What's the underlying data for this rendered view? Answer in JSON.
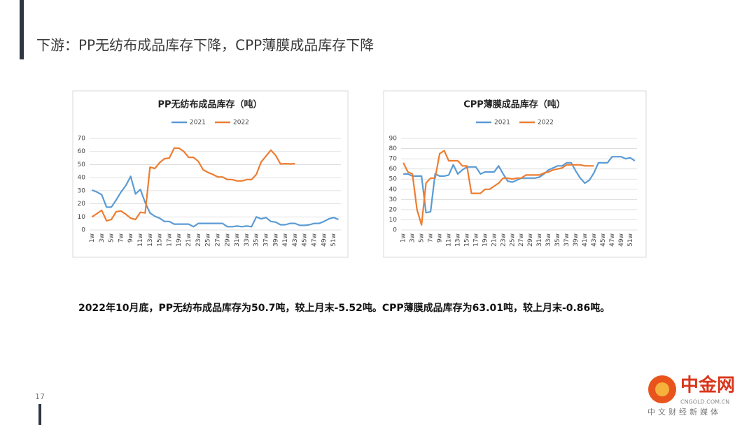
{
  "header": {
    "title": "下游：PP无纺布成品库存下降，CPP薄膜成品库存下降"
  },
  "chart_data": [
    {
      "type": "line",
      "title": "PP无纺布成品库存（吨）",
      "categories": [
        "1w",
        null,
        "3w",
        null,
        "5w",
        null,
        "7w",
        null,
        "9w",
        null,
        "11w",
        null,
        "13w",
        null,
        "15w",
        null,
        "17w",
        null,
        "19w",
        null,
        "21w",
        null,
        "23w",
        null,
        "25w",
        null,
        "27w",
        null,
        "29w",
        null,
        "31w",
        null,
        "33w",
        null,
        "35w",
        null,
        "37w",
        null,
        "39w",
        null,
        "41w",
        null,
        "43w",
        null,
        "45w",
        null,
        "47w",
        null,
        "49w",
        null,
        "51w",
        null
      ],
      "series": [
        {
          "name": "2021",
          "color": "#5b9bd5",
          "values": [
            30.5,
            29,
            27,
            17.5,
            17.5,
            23,
            29,
            34,
            41,
            27.5,
            31,
            21,
            13,
            10.5,
            9,
            6.5,
            6.5,
            4.5,
            4.5,
            4.5,
            4.5,
            2.5,
            5,
            5,
            5,
            5,
            5,
            5,
            2.5,
            2.5,
            3,
            2.5,
            3,
            2.5,
            10,
            8.5,
            9.5,
            6.5,
            6,
            4,
            4,
            5,
            5,
            3.5,
            3.5,
            4,
            5,
            5,
            6.5,
            8.5,
            9.5,
            8
          ]
        },
        {
          "name": "2022",
          "color": "#ed7d31",
          "values": [
            10,
            12.5,
            15,
            7,
            8,
            14,
            14.5,
            12,
            9,
            8,
            13.5,
            13,
            48,
            47,
            51.5,
            54.5,
            55,
            62.5,
            62.5,
            60,
            55.5,
            55.5,
            52.5,
            46,
            44,
            42.5,
            40.5,
            40.5,
            38.5,
            38.5,
            37.5,
            37.5,
            38.5,
            38.5,
            42.5,
            52,
            56.5,
            61,
            57,
            50.5,
            50.7,
            50.5,
            50.7,
            null,
            null,
            null,
            null,
            null,
            null,
            null,
            null,
            null
          ]
        }
      ],
      "ylim": [
        0,
        70
      ],
      "yticks": [
        0,
        10,
        20,
        30,
        40,
        50,
        60,
        70
      ],
      "legend": "top"
    },
    {
      "type": "line",
      "title": "CPP薄膜成品库存（吨）",
      "categories": [
        "1w",
        null,
        "3w",
        null,
        "5w",
        null,
        "7w",
        null,
        "9w",
        null,
        "11w",
        null,
        "13w",
        null,
        "15w",
        null,
        "17w",
        null,
        "19w",
        null,
        "21w",
        null,
        "23w",
        null,
        "25w",
        null,
        "27w",
        null,
        "29w",
        null,
        "31w",
        null,
        "33w",
        null,
        "35w",
        null,
        "37w",
        null,
        "39w",
        null,
        "41w",
        null,
        "43w",
        null,
        "45w",
        null,
        "47w",
        null,
        "49w",
        null,
        "51w",
        null
      ],
      "series": [
        {
          "name": "2021",
          "color": "#5b9bd5",
          "values": [
            55,
            55,
            53,
            53,
            53,
            17,
            18,
            55,
            53,
            53,
            54,
            64,
            55,
            59,
            62,
            62,
            62,
            55,
            57,
            57,
            57,
            63,
            55,
            48,
            47,
            49,
            51,
            51,
            51,
            51,
            52,
            55,
            59,
            61,
            63,
            63,
            66,
            66,
            58,
            51,
            46,
            49,
            56,
            66,
            66,
            66,
            72,
            72,
            72,
            70,
            71,
            68
          ]
        },
        {
          "name": "2022",
          "color": "#ed7d31",
          "values": [
            66,
            57,
            55,
            20,
            5,
            46,
            51,
            51,
            75,
            78,
            68,
            68,
            68,
            63,
            63,
            36,
            36,
            36,
            40,
            40,
            43,
            46,
            51,
            51,
            50,
            51,
            51,
            54,
            54,
            54,
            54,
            56,
            57,
            59,
            60,
            61,
            64,
            64,
            64,
            64,
            63,
            63,
            63.01,
            null,
            null,
            null,
            null,
            null,
            null,
            null,
            null,
            null
          ]
        }
      ],
      "ylim": [
        0,
        90
      ],
      "yticks": [
        0,
        10,
        20,
        30,
        40,
        50,
        60,
        70,
        80,
        90
      ],
      "legend": "top"
    }
  ],
  "body": {
    "text": "2022年10月底，PP无纺布成品库存为50.7吨，较上月末-5.52吨。CPP薄膜成品库存为63.01吨，较上月末-0.86吨。"
  },
  "footer": {
    "page_number": "17"
  },
  "logo": {
    "name": "中金网",
    "url": "CNGOLD.COM.CN",
    "slogan": "中文财经新媒体"
  }
}
